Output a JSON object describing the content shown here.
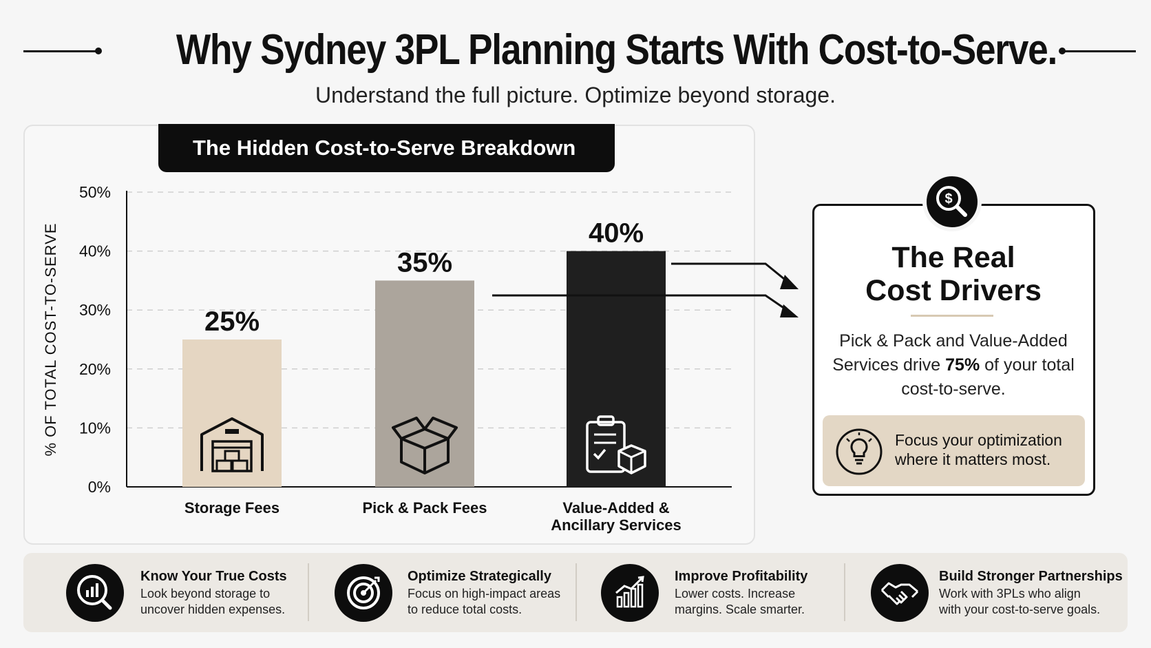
{
  "header": {
    "title": "Why Sydney 3PL Planning Starts With Cost-to-Serve.",
    "subtitle": "Understand the full picture. Optimize beyond storage."
  },
  "chart_data": {
    "type": "bar",
    "title": "The Hidden Cost-to-Serve Breakdown",
    "ylabel": "% OF TOTAL COST-TO-SERVE",
    "xlabel": "",
    "ylim": [
      0,
      50
    ],
    "yticks": [
      0,
      10,
      20,
      30,
      40,
      50
    ],
    "ytick_labels": [
      "0%",
      "10%",
      "20%",
      "30%",
      "40%",
      "50%"
    ],
    "grid": true,
    "categories": [
      [
        "Storage Fees"
      ],
      [
        "Pick & Pack Fees"
      ],
      [
        "Value-Added &",
        "Ancillary Services"
      ]
    ],
    "values": [
      25,
      35,
      40
    ],
    "value_labels": [
      "25%",
      "35%",
      "40%"
    ],
    "bar_colors": [
      "#e5d6c2",
      "#aca59c",
      "#1f1f1f"
    ],
    "bar_icons": [
      "warehouse-icon",
      "open-box-icon",
      "clipboard-box-icon"
    ]
  },
  "callout": {
    "heading_line1": "The Real",
    "heading_line2": "Cost Drivers",
    "body_pre": "Pick & Pack and Value-Added Services drive ",
    "body_bold": "75%",
    "body_post": " of your total cost-to-serve.",
    "tip_line1": "Focus your optimization",
    "tip_line2": "where it matters most.",
    "icon": "dollar-magnifier-icon",
    "tip_icon": "lightbulb-icon"
  },
  "features": [
    {
      "title": "Know Your True Costs",
      "desc_line1": "Look beyond storage to",
      "desc_line2": "uncover hidden expenses.",
      "icon": "magnifier-chart-icon"
    },
    {
      "title": "Optimize Strategically",
      "desc_line1": "Focus on high-impact areas",
      "desc_line2": "to reduce total costs.",
      "icon": "target-icon"
    },
    {
      "title": "Improve Profitability",
      "desc_line1": "Lower costs. Increase",
      "desc_line2": "margins. Scale smarter.",
      "icon": "growth-chart-icon"
    },
    {
      "title": "Build Stronger Partnerships",
      "desc_line1": "Work with 3PLs who align",
      "desc_line2": "with your cost-to-serve goals.",
      "icon": "handshake-icon"
    }
  ],
  "colors": {
    "accent_beige": "#e3d7c5",
    "dark": "#0d0d0d"
  }
}
